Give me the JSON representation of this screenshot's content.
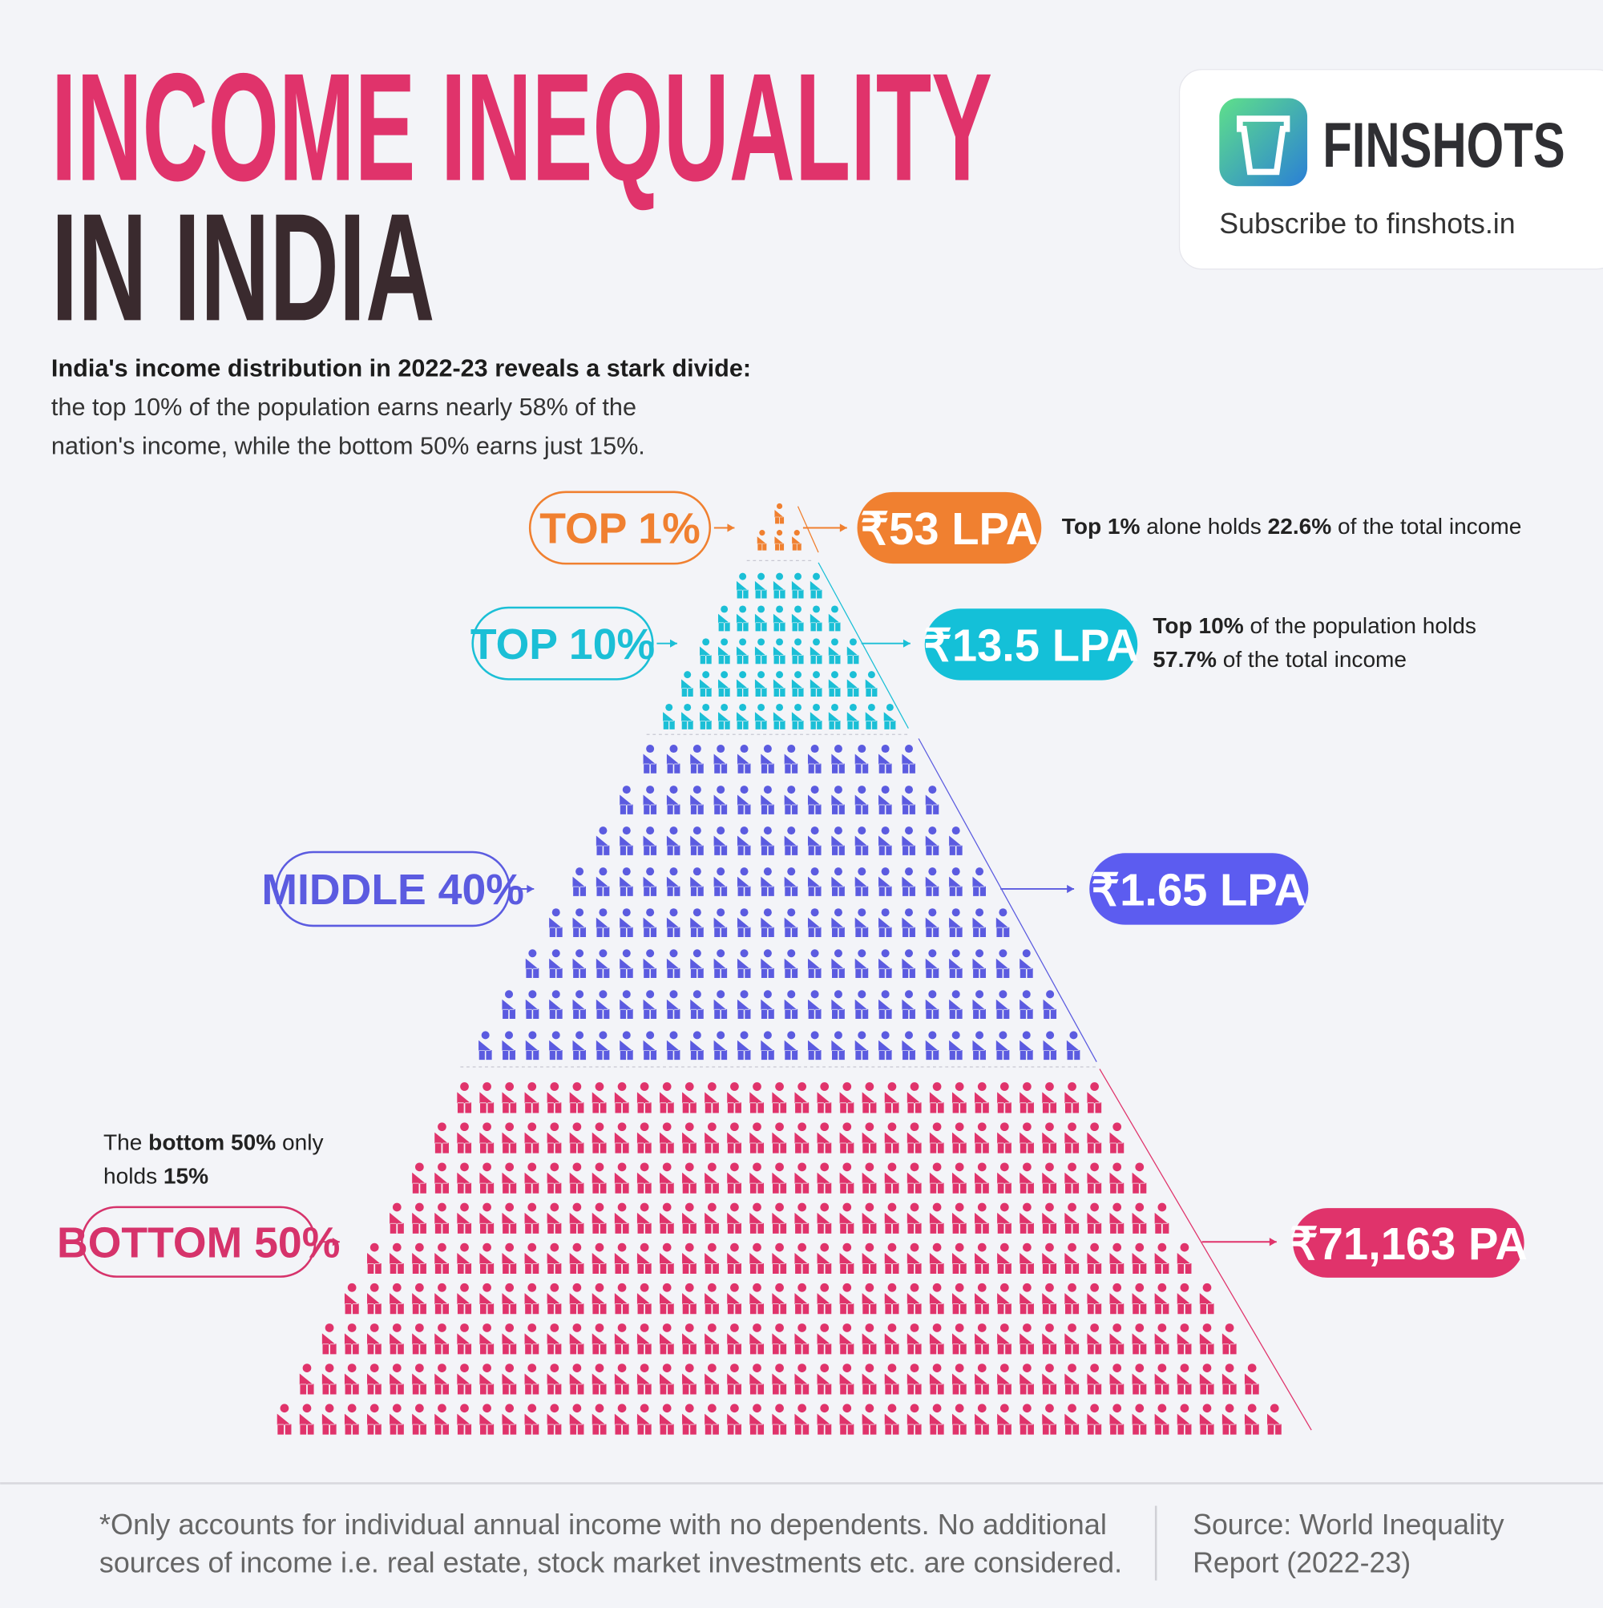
{
  "header": {
    "title_line1": "INCOME INEQUALITY",
    "title_line2": "IN INDIA",
    "intro": [
      "India's income distribution in 2022-23 reveals a stark divide:",
      "the top 10% of the population earns nearly 58% of the",
      "nation's income, while the bottom 50% earns just 15%."
    ]
  },
  "brand": {
    "name": "FINSHOTS",
    "tagline": "Subscribe to finshots.in"
  },
  "tiers": [
    {
      "label": "TOP 1%",
      "income": "₹53 LPA",
      "note": [
        [
          "Top 1%",
          " alone holds ",
          "22.6%",
          " of the total income"
        ]
      ]
    },
    {
      "label": "TOP 10%",
      "income": "₹13.5 LPA",
      "note": [
        [
          "Top 10%",
          " of the population holds"
        ],
        [
          "57.7%",
          " of the total income"
        ]
      ]
    },
    {
      "label": "MIDDLE 40%",
      "income": "₹1.65 LPA"
    },
    {
      "label": "BOTTOM 50%",
      "income": "₹71,163 PA",
      "note": [
        [
          "The ",
          "bottom 50%",
          " only"
        ],
        [
          "holds ",
          "15%"
        ]
      ]
    }
  ],
  "footer": {
    "disclaimer": [
      "*Only accounts for individual annual income with no dependents. No additional",
      "sources of income i.e. real estate, stock market investments etc. are considered."
    ],
    "source": [
      "Source: World Inequality",
      "Report (2022-23)"
    ]
  }
}
